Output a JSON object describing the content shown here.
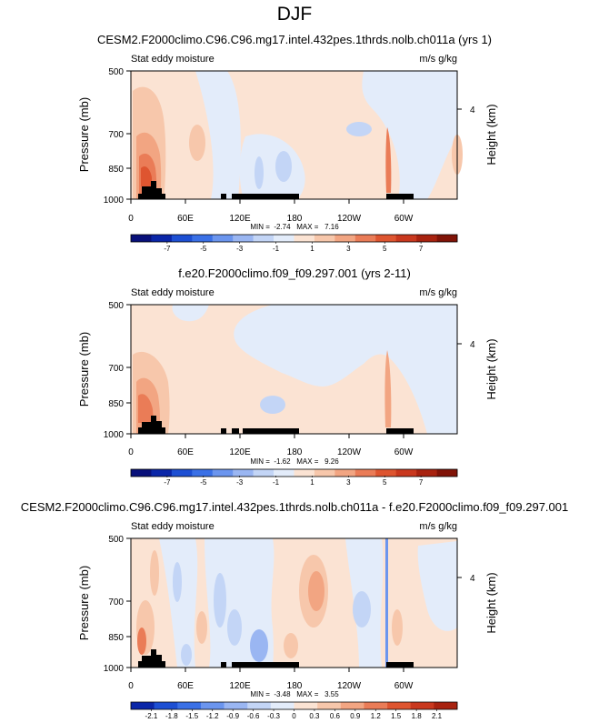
{
  "figure_title": "DJF",
  "chart_data": [
    {
      "type": "heatmap",
      "title": "CESM2.F2000climo.C96.C96.mg17.intel.432pes.1thrds.nolb.ch011a (yrs 1)",
      "left_label": "Stat eddy moisture",
      "right_label": "m/s g/kg",
      "ylabel": "Pressure (mb)",
      "ylabel_right": "Height (km)",
      "yticks": [
        "500",
        "700",
        "850",
        "1000"
      ],
      "yticks_right": [
        "4"
      ],
      "xticks": [
        "0",
        "60E",
        "120E",
        "180",
        "120W",
        "60W"
      ],
      "stats": "MIN =  -2.74   MAX =   7.16",
      "colorbar_ticks": [
        "-7",
        "-5",
        "-3",
        "-1",
        "1",
        "3",
        "5",
        "7"
      ],
      "min": -2.74,
      "max": 7.16
    },
    {
      "type": "heatmap",
      "title": "f.e20.F2000climo.f09_f09.297.001 (yrs 2-11)",
      "left_label": "Stat eddy moisture",
      "right_label": "m/s g/kg",
      "ylabel": "Pressure (mb)",
      "ylabel_right": "Height (km)",
      "yticks": [
        "500",
        "700",
        "850",
        "1000"
      ],
      "yticks_right": [
        "4"
      ],
      "xticks": [
        "0",
        "60E",
        "120E",
        "180",
        "120W",
        "60W"
      ],
      "stats": "MIN =  -1.62   MAX =   9.26",
      "colorbar_ticks": [
        "-7",
        "-5",
        "-3",
        "-1",
        "1",
        "3",
        "5",
        "7"
      ],
      "min": -1.62,
      "max": 9.26
    },
    {
      "type": "heatmap",
      "title": "CESM2.F2000climo.C96.C96.mg17.intel.432pes.1thrds.nolb.ch011a - f.e20.F2000climo.f09_f09.297.001",
      "left_label": "Stat eddy moisture",
      "right_label": "m/s g/kg",
      "ylabel": "Pressure (mb)",
      "ylabel_right": "Height (km)",
      "yticks": [
        "500",
        "700",
        "850",
        "1000"
      ],
      "yticks_right": [
        "4"
      ],
      "xticks": [
        "0",
        "60E",
        "120E",
        "180",
        "120W",
        "60W"
      ],
      "stats": "MIN =  -3.48   MAX =   3.55",
      "colorbar_ticks": [
        "-2.1",
        "-1.8",
        "-1.5",
        "-1.2",
        "-0.9",
        "-0.6",
        "-0.3",
        "0",
        "0.3",
        "0.6",
        "0.9",
        "1.2",
        "1.5",
        "1.8",
        "2.1"
      ],
      "min": -3.48,
      "max": 3.55
    }
  ],
  "colors": {
    "colorbar_16": [
      "#08107a",
      "#0a26a8",
      "#1d4fd3",
      "#3a70e6",
      "#6b95ee",
      "#9ab6f2",
      "#c3d5f6",
      "#e3ecfa",
      "#fbe3d3",
      "#f7c7ab",
      "#f2a582",
      "#ea7c57",
      "#de5530",
      "#c9381e",
      "#a8220f",
      "#801307"
    ],
    "colorbar_14": [
      "#0a26a8",
      "#1d4fd3",
      "#3a70e6",
      "#6b95ee",
      "#9ab6f2",
      "#c3d5f6",
      "#e3ecfa",
      "#fbe3d3",
      "#f7c7ab",
      "#f2a582",
      "#ea7c57",
      "#de5530",
      "#c9381e",
      "#a8220f"
    ],
    "topography": "#000000"
  }
}
